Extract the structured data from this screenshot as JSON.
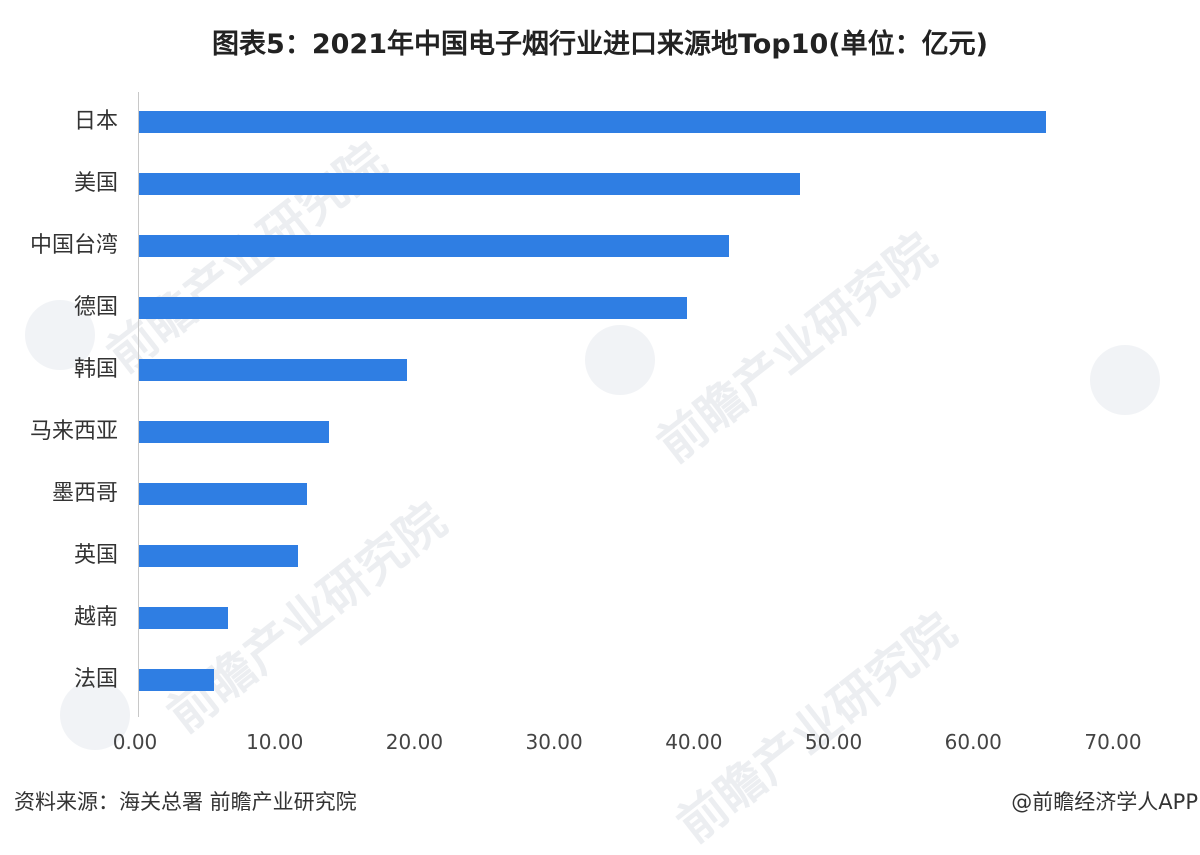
{
  "title": "图表5：2021年中国电子烟行业进口来源地Top10(单位：亿元)",
  "source": "资料来源：海关总署 前瞻产业研究院",
  "credit": "@前瞻经济学人APP",
  "watermark_text": "前瞻产业研究院",
  "colors": {
    "bar": "#2f7ee3",
    "axis": "#c8c8c8",
    "text": "#333333"
  },
  "x_ticks": [
    "0.00",
    "10.00",
    "20.00",
    "30.00",
    "40.00",
    "50.00",
    "60.00",
    "70.00"
  ],
  "chart_data": {
    "type": "bar",
    "orientation": "horizontal",
    "title": "图表5：2021年中国电子烟行业进口来源地Top10(单位：亿元)",
    "xlabel": "",
    "ylabel": "",
    "unit": "亿元",
    "categories": [
      "日本",
      "美国",
      "中国台湾",
      "德国",
      "韩国",
      "马来西亚",
      "墨西哥",
      "英国",
      "越南",
      "法国"
    ],
    "values": [
      64.9,
      47.3,
      42.2,
      39.2,
      19.2,
      13.6,
      12.0,
      11.4,
      6.4,
      5.4
    ],
    "xlim": [
      0,
      70
    ],
    "x_tick_step": 10,
    "grid": false,
    "legend": null,
    "source": "资料来源：海关总署 前瞻产业研究院"
  }
}
